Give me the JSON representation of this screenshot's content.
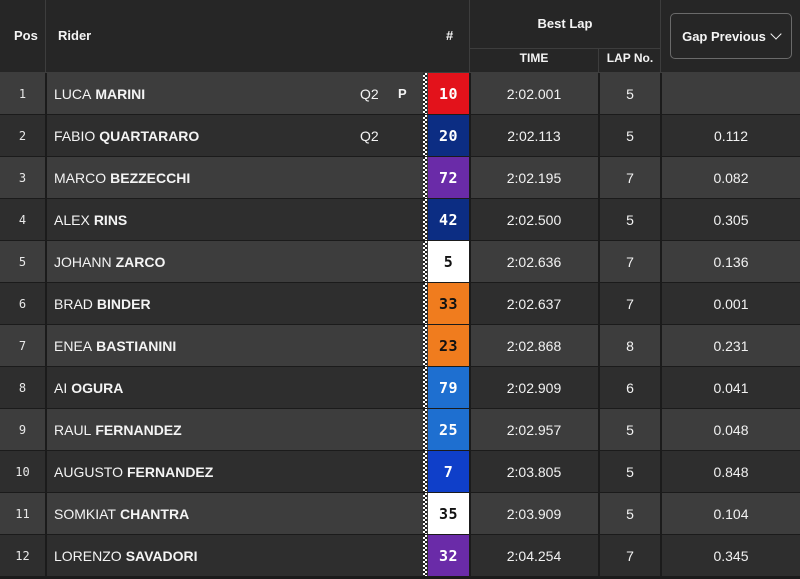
{
  "header": {
    "pos": "Pos",
    "rider": "Rider",
    "number": "#",
    "best_lap": "Best Lap",
    "time": "TIME",
    "lap_no": "LAP No.",
    "gap_dropdown": "Gap Previous"
  },
  "rows": [
    {
      "pos": "1",
      "first": "LUCA",
      "last": "MARINI",
      "q2": "Q2",
      "pole": "P",
      "num": "10",
      "num_bg": "#e3121b",
      "num_fg": "#ffffff",
      "time": "2:02.001",
      "lap": "5",
      "gap": ""
    },
    {
      "pos": "2",
      "first": "FABIO",
      "last": "QUARTARARO",
      "q2": "Q2",
      "pole": "",
      "num": "20",
      "num_bg": "#0c2d83",
      "num_fg": "#ffffff",
      "time": "2:02.113",
      "lap": "5",
      "gap": "0.112"
    },
    {
      "pos": "3",
      "first": "MARCO",
      "last": "BEZZECCHI",
      "q2": "",
      "pole": "",
      "num": "72",
      "num_bg": "#6a2ba8",
      "num_fg": "#ffffff",
      "time": "2:02.195",
      "lap": "7",
      "gap": "0.082"
    },
    {
      "pos": "4",
      "first": "ALEX",
      "last": "RINS",
      "q2": "",
      "pole": "",
      "num": "42",
      "num_bg": "#0c2d83",
      "num_fg": "#ffffff",
      "time": "2:02.500",
      "lap": "5",
      "gap": "0.305"
    },
    {
      "pos": "5",
      "first": "JOHANN",
      "last": "ZARCO",
      "q2": "",
      "pole": "",
      "num": "5",
      "num_bg": "#ffffff",
      "num_fg": "#111111",
      "time": "2:02.636",
      "lap": "7",
      "gap": "0.136"
    },
    {
      "pos": "6",
      "first": "BRAD",
      "last": "BINDER",
      "q2": "",
      "pole": "",
      "num": "33",
      "num_bg": "#f07c1e",
      "num_fg": "#111111",
      "time": "2:02.637",
      "lap": "7",
      "gap": "0.001"
    },
    {
      "pos": "7",
      "first": "ENEA",
      "last": "BASTIANINI",
      "q2": "",
      "pole": "",
      "num": "23",
      "num_bg": "#f07c1e",
      "num_fg": "#111111",
      "time": "2:02.868",
      "lap": "8",
      "gap": "0.231"
    },
    {
      "pos": "8",
      "first": "AI",
      "last": "OGURA",
      "q2": "",
      "pole": "",
      "num": "79",
      "num_bg": "#1e6fd0",
      "num_fg": "#ffffff",
      "time": "2:02.909",
      "lap": "6",
      "gap": "0.041"
    },
    {
      "pos": "9",
      "first": "RAUL",
      "last": "FERNANDEZ",
      "q2": "",
      "pole": "",
      "num": "25",
      "num_bg": "#1e6fd0",
      "num_fg": "#ffffff",
      "time": "2:02.957",
      "lap": "5",
      "gap": "0.048"
    },
    {
      "pos": "10",
      "first": "AUGUSTO",
      "last": "FERNANDEZ",
      "q2": "",
      "pole": "",
      "num": "7",
      "num_bg": "#0f3fc9",
      "num_fg": "#ffffff",
      "time": "2:03.805",
      "lap": "5",
      "gap": "0.848"
    },
    {
      "pos": "11",
      "first": "SOMKIAT",
      "last": "CHANTRA",
      "q2": "",
      "pole": "",
      "num": "35",
      "num_bg": "#ffffff",
      "num_fg": "#111111",
      "time": "2:03.909",
      "lap": "5",
      "gap": "0.104"
    },
    {
      "pos": "12",
      "first": "LORENZO",
      "last": "SAVADORI",
      "q2": "",
      "pole": "",
      "num": "32",
      "num_bg": "#6a2ba8",
      "num_fg": "#ffffff",
      "time": "2:04.254",
      "lap": "7",
      "gap": "0.345"
    }
  ]
}
